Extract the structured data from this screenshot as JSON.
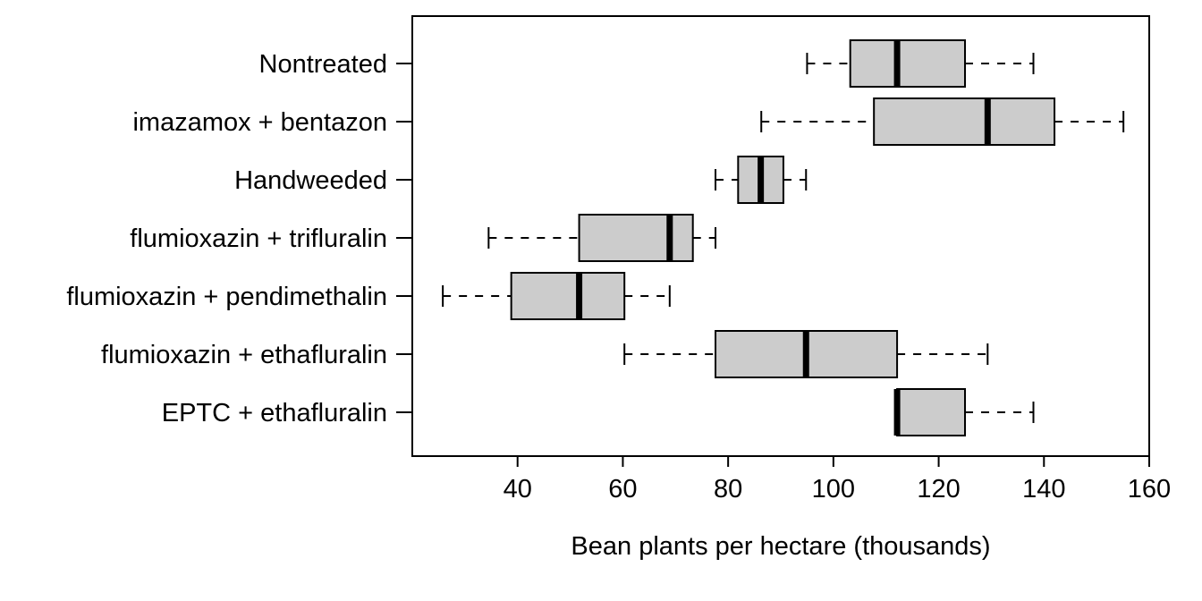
{
  "chart_data": {
    "type": "boxplot",
    "orientation": "horizontal",
    "title": "",
    "xlabel": "Bean plants per hectare (thousands)",
    "ylabel": "",
    "xlim": [
      20,
      160
    ],
    "xticks": [
      40,
      60,
      80,
      100,
      120,
      140,
      160
    ],
    "grid": false,
    "box_fill": "#cccccc",
    "categories": [
      "Nontreated",
      "imazamox + bentazon",
      "Handweeded",
      "flumioxazin + trifluralin",
      "flumioxazin + pendimethalin",
      "flumioxazin + ethafluralin",
      "EPTC + ethafluralin"
    ],
    "boxes": [
      {
        "label": "Nontreated",
        "min": 95.0,
        "q1": 103.2,
        "median": 112.1,
        "q3": 125.0,
        "max": 138.0
      },
      {
        "label": "imazamox + bentazon",
        "min": 86.3,
        "q1": 107.7,
        "median": 129.3,
        "q3": 142.0,
        "max": 155.1
      },
      {
        "label": "Handweeded",
        "min": 77.6,
        "q1": 81.9,
        "median": 86.2,
        "q3": 90.5,
        "max": 94.8
      },
      {
        "label": "flumioxazin + trifluralin",
        "min": 34.5,
        "q1": 51.7,
        "median": 68.9,
        "q3": 73.3,
        "max": 77.6
      },
      {
        "label": "flumioxazin + pendimethalin",
        "min": 25.8,
        "q1": 38.8,
        "median": 51.7,
        "q3": 60.3,
        "max": 68.9
      },
      {
        "label": "flumioxazin + ethafluralin",
        "min": 60.3,
        "q1": 77.6,
        "median": 94.8,
        "q3": 112.1,
        "max": 129.3
      },
      {
        "label": "EPTC + ethafluralin",
        "min": 112.1,
        "q1": 112.1,
        "median": 112.1,
        "q3": 125.0,
        "max": 138.0
      }
    ]
  }
}
